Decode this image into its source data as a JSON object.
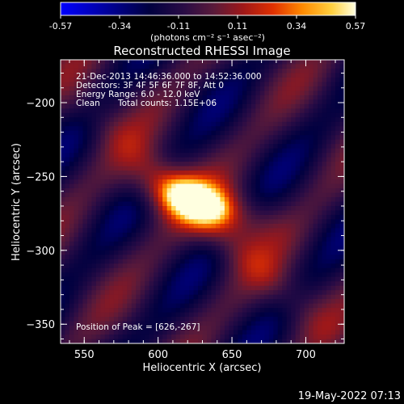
{
  "title": "Reconstructed RHESSI Image",
  "colorbar": {
    "ticks": [
      "-0.57",
      "-0.34",
      "-0.11",
      "0.11",
      "0.34",
      "0.57"
    ],
    "units_label": "(photons cm⁻² s⁻¹ asec⁻²)",
    "min": -0.57,
    "max": 0.57
  },
  "info": {
    "line1": "21-Dec-2013 14:46:36.000 to 14:52:36.000",
    "line2": "Detectors: 3F 4F 5F 6F 7F 8F, Att 0",
    "line3": "Energy Range: 6.0 - 12.0 keV",
    "line4_method": "Clean",
    "line4_counts": "Total counts: 1.15E+06"
  },
  "peak_label": "Position of Peak = [626,-267]",
  "axes": {
    "xlabel": "Heliocentric X (arcsec)",
    "ylabel": "Heliocentric Y (arcsec)",
    "x_ticks": [
      "550",
      "600",
      "650",
      "700"
    ],
    "y_ticks": [
      "-200",
      "-250",
      "-300",
      "-350"
    ],
    "x_range": [
      534,
      726
    ],
    "y_range": [
      -363,
      -171
    ]
  },
  "footer_timestamp": "19-May-2022 07:13",
  "image": {
    "peak_x": 626,
    "peak_y": -267
  }
}
